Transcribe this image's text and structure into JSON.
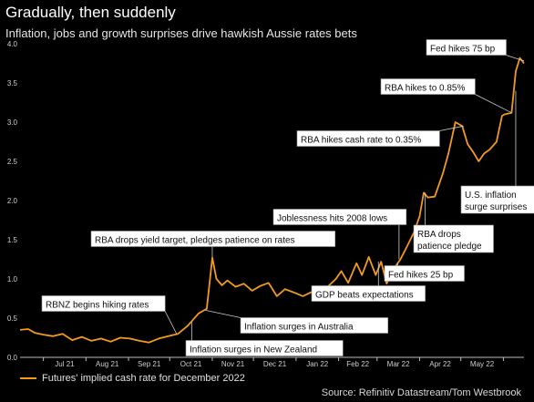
{
  "title": "Gradually, then suddenly",
  "subtitle": "Inflation, jobs and growth surprises drive hawkish Aussie rates bets",
  "source": "Source: Refinitiv Datastream/Tom Westbrook",
  "legend_label": "Futures' implied cash rate for December 2022",
  "colors": {
    "line": "#f39a1e",
    "background": "#000000",
    "annotation_border": "#888888",
    "grid": "#2a2a2a"
  },
  "chart_data": {
    "type": "line",
    "title": "Gradually, then suddenly",
    "subtitle": "Inflation, jobs and growth surprises drive hawkish Aussie rates bets",
    "xlabel": "",
    "ylabel": "",
    "ylim": [
      0,
      4
    ],
    "yticks": [
      "0.0",
      "0.5",
      "1.0",
      "1.5",
      "2.0",
      "2.5",
      "3.0",
      "3.5",
      "4.0"
    ],
    "xticks": [
      "Jul 21",
      "Aug 21",
      "Sep 21",
      "Oct 21",
      "Nov 21",
      "Dec 21",
      "Jan 22",
      "Feb 22",
      "Mar 22",
      "Apr 22",
      "May 22"
    ],
    "x_start": "2021-06-14",
    "x_end": "2022-06-16",
    "grid": false,
    "legend_position": "bottom-left",
    "series": [
      {
        "name": "Futures' implied cash rate for December 2022",
        "points": [
          [
            "2021-06-14",
            0.35
          ],
          [
            "2021-06-20",
            0.36
          ],
          [
            "2021-06-25",
            0.31
          ],
          [
            "2021-07-01",
            0.29
          ],
          [
            "2021-07-08",
            0.27
          ],
          [
            "2021-07-15",
            0.3
          ],
          [
            "2021-07-22",
            0.22
          ],
          [
            "2021-07-29",
            0.26
          ],
          [
            "2021-08-05",
            0.21
          ],
          [
            "2021-08-12",
            0.24
          ],
          [
            "2021-08-19",
            0.2
          ],
          [
            "2021-08-26",
            0.25
          ],
          [
            "2021-09-02",
            0.24
          ],
          [
            "2021-09-09",
            0.21
          ],
          [
            "2021-09-16",
            0.19
          ],
          [
            "2021-09-23",
            0.24
          ],
          [
            "2021-09-30",
            0.27
          ],
          [
            "2021-10-07",
            0.3
          ],
          [
            "2021-10-14",
            0.4
          ],
          [
            "2021-10-18",
            0.48
          ],
          [
            "2021-10-22",
            0.56
          ],
          [
            "2021-10-26",
            0.6
          ],
          [
            "2021-10-28",
            0.62
          ],
          [
            "2021-11-01",
            1.27
          ],
          [
            "2021-11-04",
            1.0
          ],
          [
            "2021-11-08",
            0.92
          ],
          [
            "2021-11-12",
            0.98
          ],
          [
            "2021-11-18",
            0.9
          ],
          [
            "2021-11-24",
            0.94
          ],
          [
            "2021-11-30",
            0.85
          ],
          [
            "2021-12-06",
            0.91
          ],
          [
            "2021-12-12",
            0.95
          ],
          [
            "2021-12-18",
            0.78
          ],
          [
            "2021-12-24",
            0.87
          ],
          [
            "2021-12-30",
            0.83
          ],
          [
            "2022-01-06",
            0.78
          ],
          [
            "2022-01-12",
            0.83
          ],
          [
            "2022-01-18",
            0.82
          ],
          [
            "2022-01-24",
            0.9
          ],
          [
            "2022-01-30",
            1.0
          ],
          [
            "2022-02-03",
            1.1
          ],
          [
            "2022-02-08",
            0.95
          ],
          [
            "2022-02-14",
            1.2
          ],
          [
            "2022-02-18",
            1.05
          ],
          [
            "2022-02-23",
            1.28
          ],
          [
            "2022-02-28",
            1.05
          ],
          [
            "2022-03-04",
            1.22
          ],
          [
            "2022-03-08",
            0.94
          ],
          [
            "2022-03-14",
            1.15
          ],
          [
            "2022-03-18",
            1.25
          ],
          [
            "2022-03-23",
            1.42
          ],
          [
            "2022-03-28",
            1.6
          ],
          [
            "2022-04-01",
            1.8
          ],
          [
            "2022-04-04",
            2.1
          ],
          [
            "2022-04-07",
            2.04
          ],
          [
            "2022-04-12",
            2.05
          ],
          [
            "2022-04-18",
            2.35
          ],
          [
            "2022-04-22",
            2.6
          ],
          [
            "2022-04-27",
            3.0
          ],
          [
            "2022-05-02",
            2.95
          ],
          [
            "2022-05-06",
            2.72
          ],
          [
            "2022-05-10",
            2.62
          ],
          [
            "2022-05-14",
            2.5
          ],
          [
            "2022-05-18",
            2.6
          ],
          [
            "2022-05-22",
            2.65
          ],
          [
            "2022-05-27",
            2.75
          ],
          [
            "2022-05-31",
            3.08
          ],
          [
            "2022-06-02",
            3.1
          ],
          [
            "2022-06-07",
            3.12
          ],
          [
            "2022-06-10",
            3.65
          ],
          [
            "2022-06-13",
            3.82
          ],
          [
            "2022-06-16",
            3.75
          ]
        ]
      }
    ],
    "annotations": [
      {
        "text": "RBNZ begins hiking rates",
        "date": "2021-10-06",
        "value": 0.3
      },
      {
        "text": "Inflation surges in New Zealand",
        "date": "2021-10-17",
        "value": 0.45
      },
      {
        "text": "Inflation surges in Australia",
        "date": "2021-10-27",
        "value": 0.6
      },
      {
        "text": "RBA drops yield target, pledges patience on rates",
        "date": "2021-11-01",
        "value": 1.27
      },
      {
        "text": "GDP beats expectations",
        "date": "2022-03-02",
        "value": 1.22
      },
      {
        "text": "Joblessness hits 2008 lows",
        "date": "2022-03-17",
        "value": 1.25
      },
      {
        "text": "Fed hikes 25 bp",
        "date": "2022-03-16",
        "value": 1.2
      },
      {
        "text": "RBA drops patience pledge",
        "date": "2022-04-05",
        "value": 2.1
      },
      {
        "text": "RBA hikes cash rate to 0.35%",
        "date": "2022-05-03",
        "value": 2.95
      },
      {
        "text": "U.S. inflation surge surprises",
        "date": "2022-06-10",
        "value": 3.4
      },
      {
        "text": "RBA hikes to 0.85%",
        "date": "2022-06-07",
        "value": 3.12
      },
      {
        "text": "Fed hikes 75 bp",
        "date": "2022-06-16",
        "value": 3.78
      }
    ]
  }
}
